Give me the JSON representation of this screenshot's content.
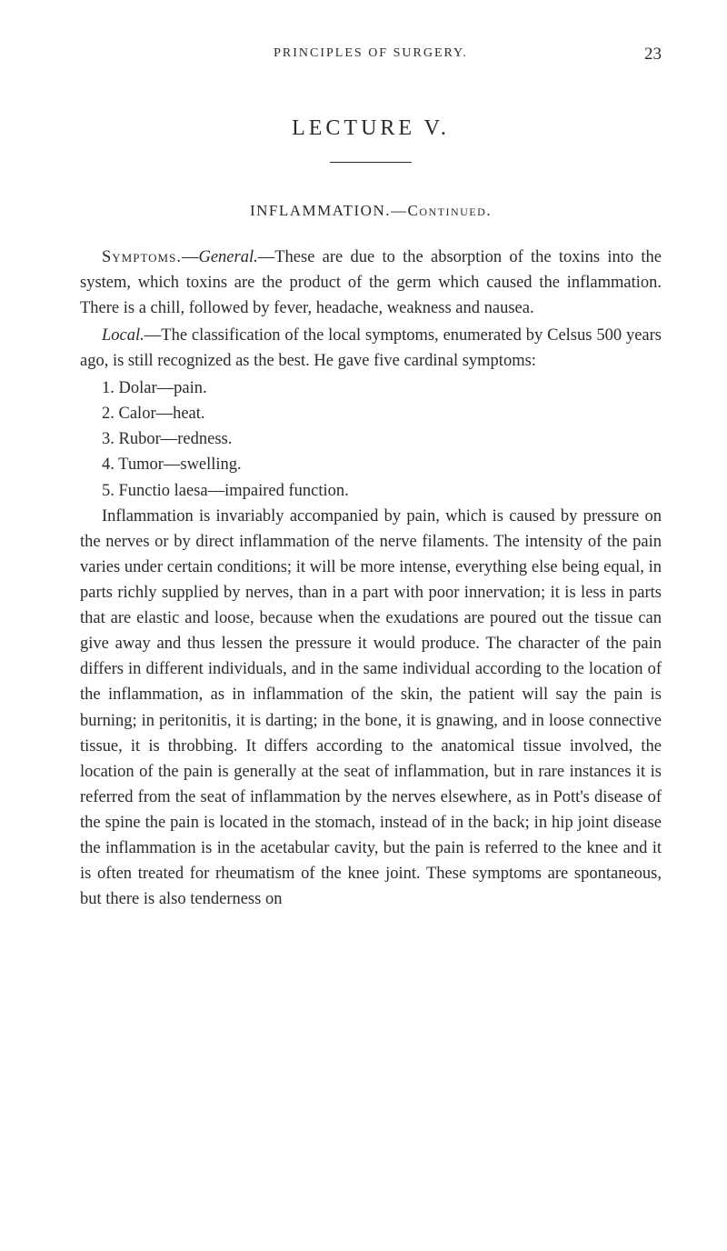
{
  "colors": {
    "background": "#ffffff",
    "text": "#2a2a2a"
  },
  "typography": {
    "body_font": "Georgia, Times New Roman, serif",
    "body_size_pt": 14,
    "title_size_pt": 18,
    "running_head_size_pt": 11
  },
  "header": {
    "running_title": "PRINCIPLES OF SURGERY.",
    "page_number": "23"
  },
  "lecture": {
    "title": "LECTURE V.",
    "section": "INFLAMMATION.—Continued."
  },
  "paragraphs": {
    "p1_lead": "Symptoms.",
    "p1_sub": "General.",
    "p1_rest": "—These are due to the absorption of the toxins into the system, which toxins are the product of the germ which caused the inflammation. There is a chill, followed by fever, headache, weakness and nausea.",
    "p2_lead": "Local.",
    "p2_rest": "—The classification of the local symptoms, enumerated by Celsus 500 years ago, is still recognized as the best. He gave five cardinal symptoms:",
    "item1": "1. Dolar—pain.",
    "item2": "2. Calor—heat.",
    "item3": "3. Rubor—redness.",
    "item4": "4. Tumor—swelling.",
    "item5": "5. Functio laesa—impaired function.",
    "p3": "Inflammation is invariably accompanied by pain, which is caused by pressure on the nerves or by direct inflammation of the nerve filaments. The intensity of the pain varies under certain conditions; it will be more intense, everything else being equal, in parts richly supplied by nerves, than in a part with poor innervation; it is less in parts that are elastic and loose, because when the exudations are poured out the tissue can give away and thus lessen the pressure it would produce. The character of the pain differs in different individuals, and in the same individual according to the location of the inflammation, as in inflammation of the skin, the patient will say the pain is burning; in peritonitis, it is darting; in the bone, it is gnawing, and in loose connective tissue, it is throbbing. It differs according to the anatomical tissue involved, the location of the pain is generally at the seat of inflammation, but in rare instances it is referred from the seat of inflammation by the nerves elsewhere, as in Pott's disease of the spine the pain is located in the stomach, instead of in the back; in hip joint disease the inflammation is in the acetabular cavity, but the pain is referred to the knee and it is often treated for rheumatism of the knee joint. These symptoms are spontaneous, but there is also tenderness on"
  }
}
